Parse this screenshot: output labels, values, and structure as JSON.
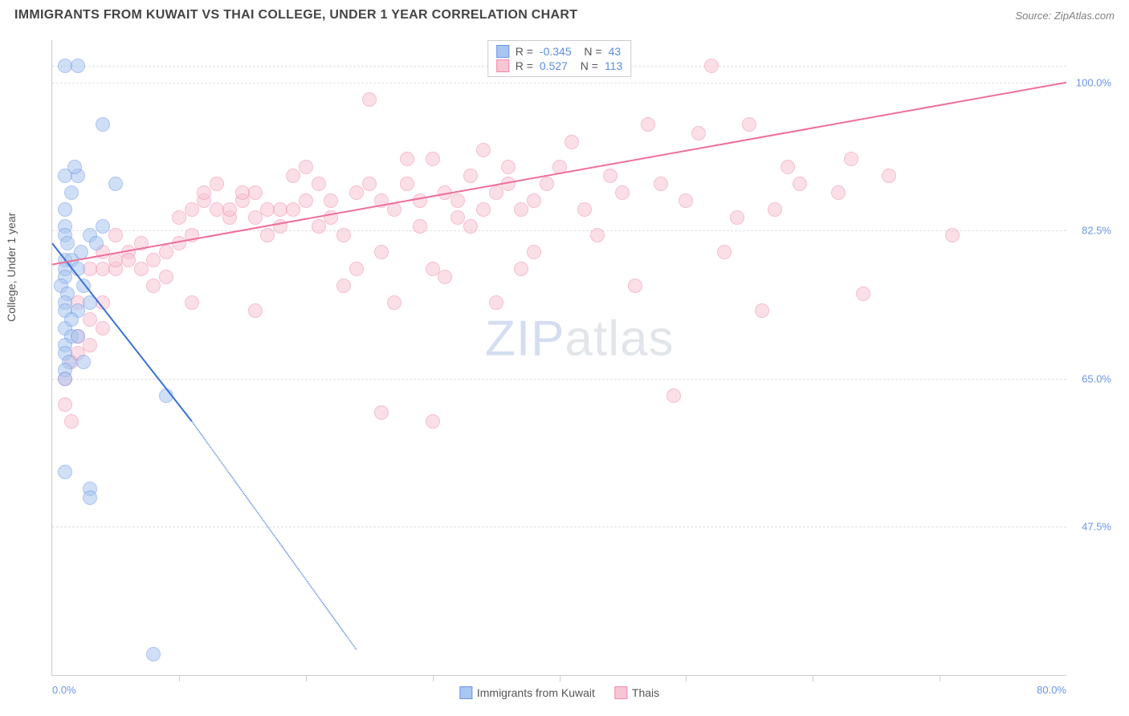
{
  "header": {
    "title": "IMMIGRANTS FROM KUWAIT VS THAI COLLEGE, UNDER 1 YEAR CORRELATION CHART",
    "source_prefix": "Source: ",
    "source": "ZipAtlas.com"
  },
  "ylabel": "College, Under 1 year",
  "watermark": {
    "z": "Z",
    "i": "I",
    "p": "P",
    "rest": "atlas"
  },
  "chart": {
    "type": "scatter",
    "xlim": [
      0,
      80
    ],
    "ylim": [
      30,
      105
    ],
    "y_ticks": [
      {
        "v": 47.5,
        "label": "47.5%"
      },
      {
        "v": 65.0,
        "label": "65.0%"
      },
      {
        "v": 82.5,
        "label": "82.5%"
      },
      {
        "v": 100.0,
        "label": "100.0%"
      }
    ],
    "x_ticks_minor": [
      10,
      20,
      30,
      40,
      50,
      60,
      70
    ],
    "x_left_label": "0.0%",
    "x_right_label": "80.0%",
    "background_color": "#ffffff",
    "grid_color": "#e0e0e0",
    "axis_color": "#cccccc",
    "marker_radius": 9,
    "marker_opacity": 0.55,
    "series": [
      {
        "name_key": "Immigrants from Kuwait",
        "R": "-0.345",
        "N": "43",
        "fill": "#a9c6f0",
        "stroke": "#6b95e8",
        "line_color": "#3a6fd8",
        "trend": {
          "x1": 0,
          "y1": 81,
          "x2": 11,
          "y2": 60,
          "xd": 24,
          "yd": 33
        },
        "points": [
          [
            1,
            102
          ],
          [
            2,
            102
          ],
          [
            4,
            95
          ],
          [
            1,
            89
          ],
          [
            2,
            89
          ],
          [
            1.5,
            87
          ],
          [
            1,
            85
          ],
          [
            1,
            83
          ],
          [
            4,
            83
          ],
          [
            1,
            82
          ],
          [
            1.2,
            81
          ],
          [
            2.3,
            80
          ],
          [
            1,
            79
          ],
          [
            1.5,
            79
          ],
          [
            1,
            78
          ],
          [
            1,
            77
          ],
          [
            0.7,
            76
          ],
          [
            1.2,
            75
          ],
          [
            1,
            74
          ],
          [
            1,
            73
          ],
          [
            2,
            73
          ],
          [
            1,
            71
          ],
          [
            1.5,
            70
          ],
          [
            1,
            69
          ],
          [
            1,
            68
          ],
          [
            1.3,
            67
          ],
          [
            2.5,
            67
          ],
          [
            1,
            66
          ],
          [
            1,
            65
          ],
          [
            9,
            63
          ],
          [
            3,
            82
          ],
          [
            3.5,
            81
          ],
          [
            2,
            78
          ],
          [
            2.5,
            76
          ],
          [
            3,
            74
          ],
          [
            1.5,
            72
          ],
          [
            2,
            70
          ],
          [
            1,
            54
          ],
          [
            3,
            52
          ],
          [
            3,
            51
          ],
          [
            8,
            32.5
          ],
          [
            5,
            88
          ],
          [
            1.8,
            90
          ]
        ]
      },
      {
        "name_key": "Thais",
        "R": "0.527",
        "N": "113",
        "fill": "#f8c5d4",
        "stroke": "#ef8aab",
        "line_color": "#ef6f9a",
        "trend": {
          "x1": 0,
          "y1": 78.5,
          "x2": 80,
          "y2": 100
        },
        "points": [
          [
            1,
            62
          ],
          [
            1.5,
            60
          ],
          [
            1,
            65
          ],
          [
            1.5,
            67
          ],
          [
            2,
            68
          ],
          [
            2,
            70
          ],
          [
            3,
            69
          ],
          [
            2,
            74
          ],
          [
            3,
            72
          ],
          [
            4,
            71
          ],
          [
            3,
            78
          ],
          [
            4,
            78
          ],
          [
            5,
            78
          ],
          [
            4,
            80
          ],
          [
            5,
            79
          ],
          [
            6,
            80
          ],
          [
            5,
            82
          ],
          [
            6,
            79
          ],
          [
            7,
            78
          ],
          [
            7,
            81
          ],
          [
            8,
            79
          ],
          [
            8,
            76
          ],
          [
            9,
            80
          ],
          [
            9,
            77
          ],
          [
            10,
            81
          ],
          [
            10,
            84
          ],
          [
            11,
            82
          ],
          [
            11,
            85
          ],
          [
            12,
            86
          ],
          [
            12,
            87
          ],
          [
            13,
            85
          ],
          [
            13,
            88
          ],
          [
            14,
            84
          ],
          [
            14,
            85
          ],
          [
            15,
            86
          ],
          [
            15,
            87
          ],
          [
            16,
            84
          ],
          [
            16,
            87
          ],
          [
            17,
            85
          ],
          [
            17,
            82
          ],
          [
            18,
            83
          ],
          [
            18,
            85
          ],
          [
            19,
            85
          ],
          [
            19,
            89
          ],
          [
            20,
            86
          ],
          [
            20,
            90
          ],
          [
            21,
            83
          ],
          [
            21,
            88
          ],
          [
            22,
            86
          ],
          [
            22,
            84
          ],
          [
            23,
            82
          ],
          [
            23,
            76
          ],
          [
            24,
            78
          ],
          [
            24,
            87
          ],
          [
            25,
            98
          ],
          [
            25,
            88
          ],
          [
            26,
            86
          ],
          [
            26,
            80
          ],
          [
            27,
            74
          ],
          [
            27,
            85
          ],
          [
            28,
            88
          ],
          [
            28,
            91
          ],
          [
            29,
            86
          ],
          [
            29,
            83
          ],
          [
            30,
            91
          ],
          [
            30,
            78
          ],
          [
            31,
            87
          ],
          [
            31,
            77
          ],
          [
            32,
            86
          ],
          [
            32,
            84
          ],
          [
            33,
            89
          ],
          [
            33,
            83
          ],
          [
            34,
            92
          ],
          [
            34,
            85
          ],
          [
            35,
            87
          ],
          [
            35,
            74
          ],
          [
            36,
            88
          ],
          [
            36,
            90
          ],
          [
            37,
            78
          ],
          [
            37,
            85
          ],
          [
            38,
            86
          ],
          [
            38,
            80
          ],
          [
            39,
            88
          ],
          [
            40,
            90
          ],
          [
            41,
            93
          ],
          [
            42,
            85
          ],
          [
            43,
            82
          ],
          [
            44,
            89
          ],
          [
            45,
            87
          ],
          [
            46,
            76
          ],
          [
            47,
            95
          ],
          [
            48,
            88
          ],
          [
            49,
            63
          ],
          [
            50,
            86
          ],
          [
            51,
            94
          ],
          [
            52,
            102
          ],
          [
            53,
            80
          ],
          [
            54,
            84
          ],
          [
            55,
            95
          ],
          [
            56,
            73
          ],
          [
            57,
            85
          ],
          [
            58,
            90
          ],
          [
            59,
            88
          ],
          [
            62,
            87
          ],
          [
            63,
            91
          ],
          [
            64,
            75
          ],
          [
            66,
            89
          ],
          [
            71,
            82
          ],
          [
            26,
            61
          ],
          [
            30,
            60
          ],
          [
            16,
            73
          ],
          [
            11,
            74
          ],
          [
            4,
            74
          ]
        ]
      }
    ]
  },
  "legend_bottom": [
    {
      "label": "Immigrants from Kuwait",
      "fill": "#a9c6f0",
      "stroke": "#6b95e8"
    },
    {
      "label": "Thais",
      "fill": "#f8c5d4",
      "stroke": "#ef8aab"
    }
  ]
}
